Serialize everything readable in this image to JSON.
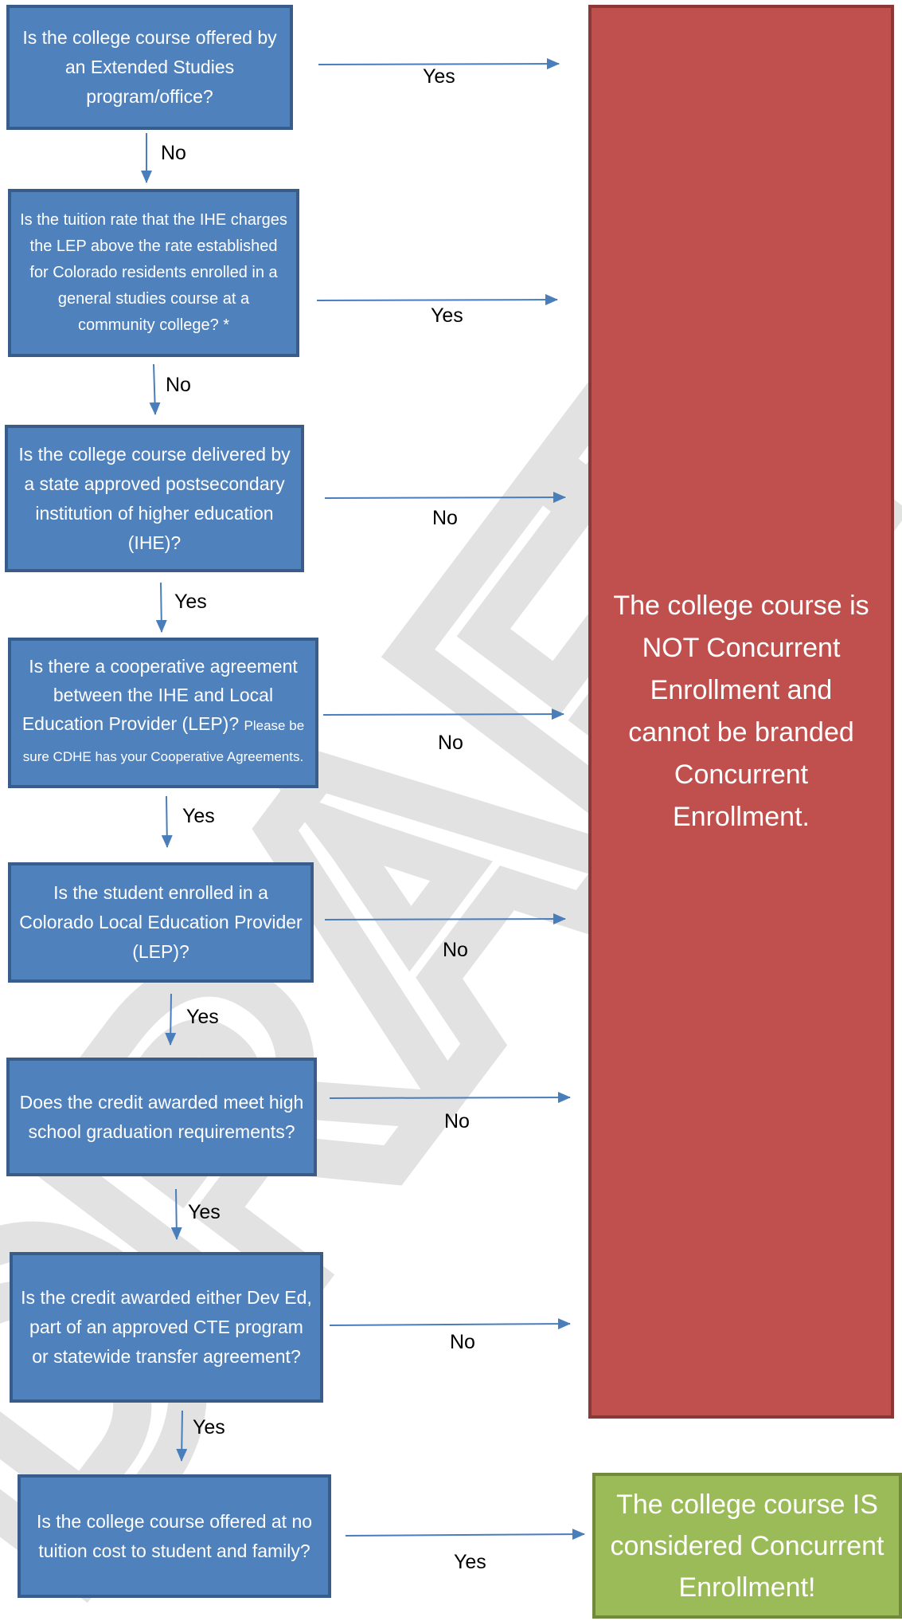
{
  "questions": [
    {
      "text": "Is the college course offered by an Extended Studies program/office?",
      "note": ""
    },
    {
      "text": "Is the tuition rate that the IHE charges the LEP above the rate established for Colorado residents enrolled in a general studies course at a community college? *",
      "note": ""
    },
    {
      "text": "Is the college course delivered by a state approved postsecondary institution of higher education (IHE)?",
      "note": ""
    },
    {
      "text": "Is there a cooperative agreement between the IHE and Local Education Provider (LEP)?",
      "note": "Please be sure CDHE has your Cooperative Agreements."
    },
    {
      "text": "Is the student enrolled in a Colorado Local Education Provider (LEP)?",
      "note": ""
    },
    {
      "text": "Does the credit awarded meet high school graduation requirements?",
      "note": ""
    },
    {
      "text": "Is the credit awarded either Dev Ed, part of an approved CTE program or statewide transfer agreement?",
      "note": ""
    },
    {
      "text": "Is the college course offered at no tuition cost to student and family?",
      "note": ""
    }
  ],
  "side_labels": [
    "Yes",
    "Yes",
    "No",
    "No",
    "No",
    "No",
    "No",
    "Yes"
  ],
  "down_labels": [
    "No",
    "No",
    "Yes",
    "Yes",
    "Yes",
    "Yes",
    "Yes"
  ],
  "results": {
    "not_concurrent": "The college course is NOT Concurrent Enrollment and cannot be branded Concurrent Enrollment.",
    "is_concurrent": "The college course IS considered Concurrent Enrollment!"
  },
  "watermark": "DRAFT",
  "colors": {
    "question_fill": "#4f81bd",
    "question_border": "#385d8a",
    "not_fill": "#c0504d",
    "is_fill": "#9bbb59",
    "arrow": "#4a7ebb",
    "watermark": "#d9d9d9"
  }
}
